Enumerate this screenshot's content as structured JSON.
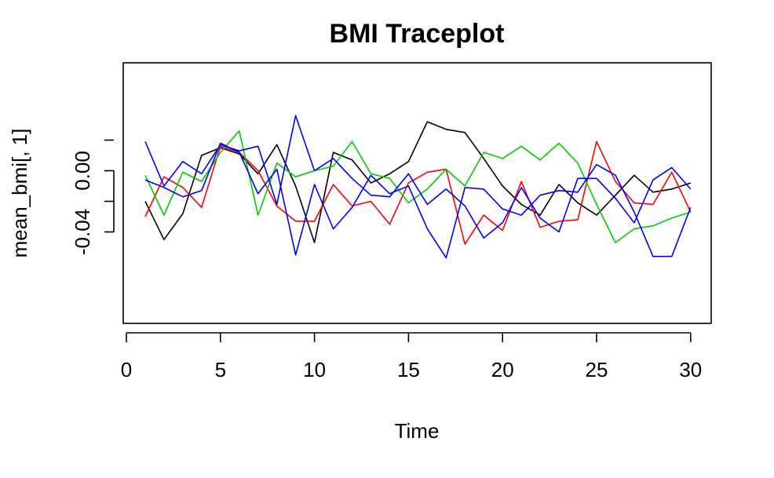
{
  "chart_data": {
    "type": "line",
    "title": "BMI Traceplot",
    "xlabel": "Time",
    "ylabel": "mean_bmi[, 1]",
    "xlim": [
      0,
      30
    ],
    "ylim": [
      -0.0495,
      0.0355
    ],
    "x_ticks": [
      0,
      5,
      10,
      15,
      20,
      25,
      30
    ],
    "y_ticks": [
      -0.04,
      0.0
    ],
    "y_tick_labels": [
      "-0.04",
      "0.00"
    ],
    "grid": false,
    "legend": "none",
    "x": [
      1,
      2,
      3,
      4,
      5,
      6,
      7,
      8,
      9,
      10,
      11,
      12,
      13,
      14,
      15,
      16,
      17,
      18,
      19,
      20,
      21,
      22,
      23,
      24,
      25,
      26,
      27,
      28,
      29,
      30
    ],
    "series": [
      {
        "color": "#000000",
        "values": [
          -0.02,
          -0.045,
          -0.028,
          0.01,
          0.015,
          0.011,
          -0.002,
          0.017,
          -0.01,
          -0.047,
          0.012,
          0.007,
          -0.008,
          -0.002,
          0.006,
          0.032,
          0.027,
          0.025,
          0.008,
          -0.01,
          -0.022,
          -0.029,
          -0.009,
          -0.021,
          -0.029,
          -0.016,
          -0.003,
          -0.014,
          -0.012,
          -0.008
        ]
      },
      {
        "color": "#ff0000",
        "values": [
          -0.03,
          -0.004,
          -0.011,
          -0.024,
          0.016,
          0.012,
          0.0,
          -0.023,
          -0.033,
          -0.033,
          -0.009,
          -0.023,
          -0.02,
          -0.035,
          -0.008,
          -0.001,
          0.001,
          -0.048,
          -0.029,
          -0.039,
          -0.007,
          -0.037,
          -0.033,
          -0.032,
          0.019,
          -0.007,
          -0.021,
          -0.022,
          -0.001,
          -0.027
        ]
      },
      {
        "color": "#00cd00",
        "values": [
          -0.003,
          -0.029,
          -0.001,
          -0.007,
          0.012,
          0.026,
          -0.029,
          0.005,
          -0.004,
          0.0,
          0.003,
          0.019,
          -0.002,
          -0.005,
          -0.021,
          -0.012,
          0.001,
          -0.01,
          0.012,
          0.008,
          0.016,
          0.007,
          0.018,
          0.005,
          -0.022,
          -0.047,
          -0.038,
          -0.036,
          -0.031,
          -0.027
        ]
      },
      {
        "color": "#0000ff",
        "values": [
          0.019,
          -0.01,
          0.006,
          -0.002,
          0.017,
          0.013,
          0.016,
          -0.022,
          0.036,
          0.0,
          0.008,
          -0.005,
          -0.016,
          -0.017,
          -0.002,
          -0.022,
          -0.012,
          -0.023,
          -0.044,
          -0.034,
          -0.011,
          -0.031,
          -0.04,
          -0.005,
          -0.005,
          -0.018,
          -0.034,
          -0.006,
          0.002,
          -0.012
        ]
      },
      {
        "color": "#0000ff",
        "values": [
          -0.006,
          -0.011,
          -0.017,
          -0.013,
          0.018,
          0.012,
          -0.015,
          0.001,
          -0.055,
          -0.009,
          -0.038,
          -0.024,
          -0.003,
          -0.015,
          -0.01,
          -0.038,
          -0.057,
          -0.011,
          -0.012,
          -0.025,
          -0.029,
          -0.016,
          -0.013,
          -0.014,
          0.004,
          -0.003,
          -0.027,
          -0.056,
          -0.056,
          -0.024
        ]
      }
    ]
  }
}
